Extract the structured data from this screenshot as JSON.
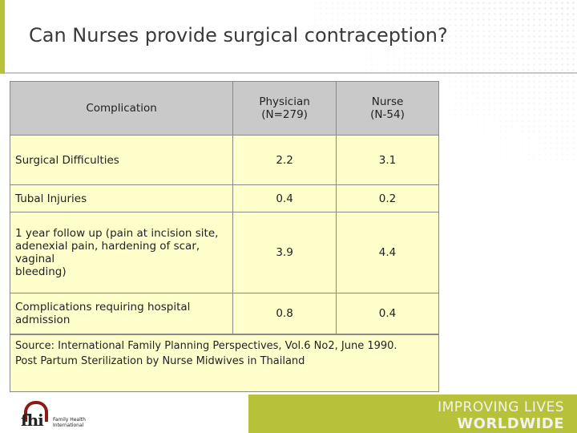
{
  "title": "Can Nurses provide surgical contraception?",
  "table": {
    "headers": [
      "Complication",
      "Physician\n(N=279)",
      "Nurse\n(N-54)"
    ],
    "rows": [
      {
        "label": "Surgical Difficulties",
        "physician": "2.2",
        "nurse": "3.1"
      },
      {
        "label": "Tubal Injuries",
        "physician": "0.4",
        "nurse": "0.2"
      },
      {
        "label": "1 year follow up (pain at incision site,\nadenexial pain, hardening of scar,\nvaginal\nbleeding)",
        "physician": "3.9",
        "nurse": "4.4"
      },
      {
        "label": "Complications requiring hospital\nadmission",
        "physician": "0.8",
        "nurse": "0.4"
      }
    ]
  },
  "source": "Source:  International Family Planning Perspectives, Vol.6 No2, June 1990.\nPost Partum Sterilization by Nurse Midwives in Thailand",
  "footer": {
    "logo_mark": "fhi",
    "logo_subtext": "Family Health\nInternational",
    "slogan_line1": "IMPROVING LIVES",
    "slogan_line2": "WORLDWIDE"
  },
  "colors": {
    "accent": "#b7c23a",
    "cell_fill": "#ffffcc",
    "header_fill": "#c9c9c9",
    "logo_arc": "#8b1a1a"
  },
  "icons": [
    "fhi-logo-icon"
  ]
}
